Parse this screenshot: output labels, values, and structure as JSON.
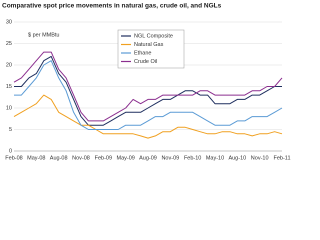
{
  "chart_data": {
    "type": "line",
    "title": "Comparative spot price movements in natural gas, crude oil, and NGLs",
    "y_label": "$ per MMBtu",
    "categories": [
      "Feb-08",
      null,
      null,
      "May-08",
      null,
      null,
      "Aug-08",
      null,
      null,
      "Nov-08",
      null,
      null,
      "Feb-09",
      null,
      null,
      "May-09",
      null,
      null,
      "Aug-09",
      null,
      null,
      "Nov-09",
      null,
      null,
      "Feb-10",
      null,
      null,
      "May-10",
      null,
      null,
      "Aug-10",
      null,
      null,
      "Nov-10",
      null,
      null,
      "Feb-11"
    ],
    "series": [
      {
        "name": "NGL Composite",
        "color": "#1f2f5f",
        "values": [
          15,
          15,
          17,
          18,
          21,
          22,
          18,
          16,
          12,
          8,
          6,
          6,
          6,
          7,
          8,
          9,
          9,
          9,
          10,
          11,
          12,
          12,
          13,
          14,
          14,
          13,
          13,
          11,
          11,
          11,
          12,
          12,
          13,
          13,
          14,
          15,
          15
        ]
      },
      {
        "name": "Natural Gas",
        "color": "#f0a020",
        "values": [
          8,
          9,
          10,
          11,
          13,
          12,
          9,
          8,
          7,
          6,
          6,
          5,
          4,
          4,
          4,
          4,
          4,
          3.5,
          3,
          3.5,
          4.5,
          4.5,
          5.5,
          5.5,
          5,
          4.5,
          4,
          4,
          4.5,
          4.5,
          4,
          4,
          3.5,
          4,
          4,
          4.5,
          4
        ]
      },
      {
        "name": "Ethane",
        "color": "#5b9bd5",
        "values": [
          13,
          13,
          15,
          17,
          20,
          21,
          17,
          14,
          9,
          6,
          5,
          5,
          5,
          5,
          5,
          6,
          6,
          6,
          7,
          8,
          8,
          9,
          9,
          9,
          9,
          8,
          7,
          6,
          6,
          6,
          7,
          7,
          8,
          8,
          8,
          9,
          10
        ]
      },
      {
        "name": "Crude Oil",
        "color": "#8b2f8f",
        "values": [
          16,
          17,
          19,
          21,
          23,
          23,
          19,
          17,
          13,
          9,
          7,
          7,
          7,
          8,
          9,
          10,
          12,
          11,
          12,
          12,
          13,
          13,
          13,
          13,
          13,
          14,
          14,
          13,
          13,
          13,
          13,
          13,
          14,
          14,
          15,
          15,
          17
        ]
      }
    ],
    "ylim": [
      0,
      30
    ],
    "yticks": [
      0,
      5,
      10,
      15,
      20,
      25,
      30
    ],
    "grid": true
  }
}
